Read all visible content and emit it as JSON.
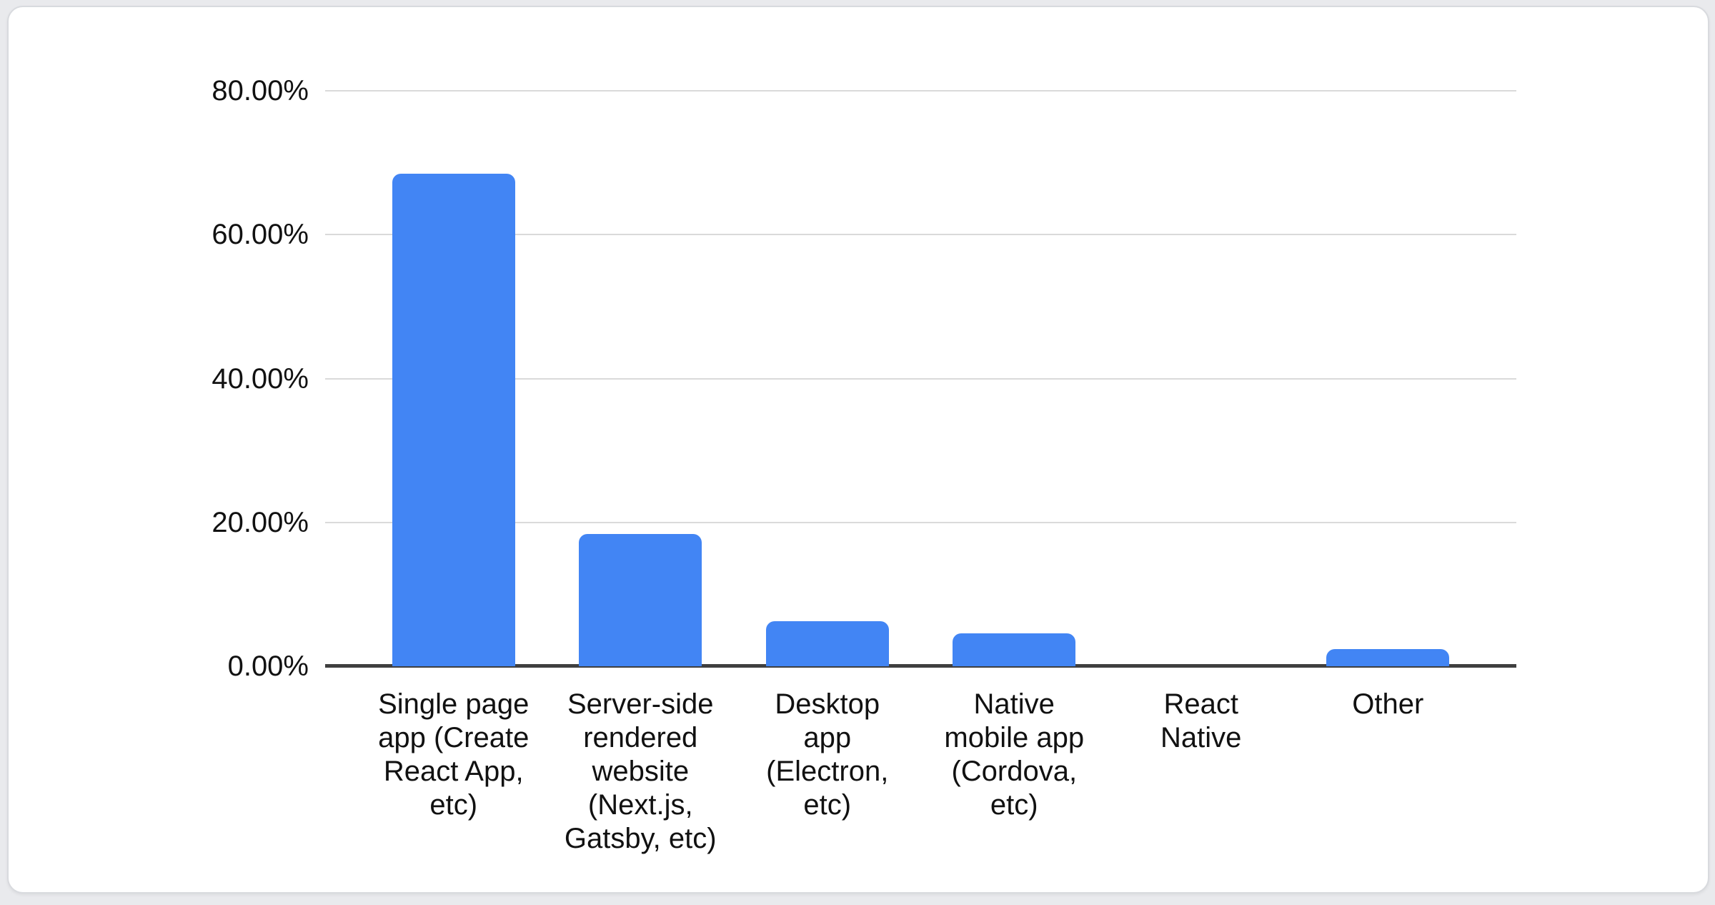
{
  "page": {
    "background_color": "#e9eaed",
    "card_background_color": "#ffffff",
    "card_border_color": "#d8dade"
  },
  "chart_data": {
    "type": "bar",
    "title": "",
    "categories": [
      "Single page app (Create React App, etc)",
      "Server-side rendered website (Next.js, Gatsby, etc)",
      "Desktop app (Electron, etc)",
      "Native mobile app (Cordova, etc)",
      "React Native",
      "Other"
    ],
    "category_lines": [
      [
        "Single page",
        "app (Create",
        "React App,",
        "etc)"
      ],
      [
        "Server-side",
        "rendered",
        "website",
        "(Next.js,",
        "Gatsby, etc)"
      ],
      [
        "Desktop",
        "app",
        "(Electron,",
        "etc)"
      ],
      [
        "Native",
        "mobile app",
        "(Cordova,",
        "etc)"
      ],
      [
        "React",
        "Native"
      ],
      [
        "Other"
      ]
    ],
    "values": [
      68.5,
      18.4,
      6.3,
      4.6,
      0,
      2.4
    ],
    "unit": "%",
    "xlabel": "",
    "ylabel": "",
    "yticks": [
      "80.00%",
      "60.00%",
      "40.00%",
      "20.00%",
      "0.00%"
    ],
    "ylim": [
      0,
      80
    ],
    "grid": true,
    "legend": "none",
    "bar_color": "#4285f4",
    "gridline_color": "#dadada",
    "axis_line_color": "#3f3f3f",
    "text_color": "#111111"
  }
}
